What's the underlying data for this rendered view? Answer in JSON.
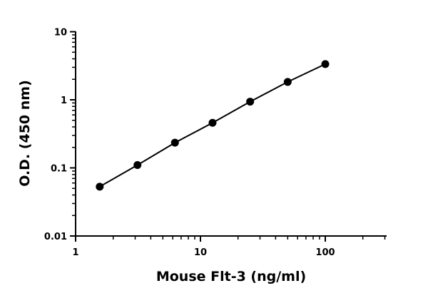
{
  "chart_data": {
    "type": "scatter",
    "title": "",
    "xlabel": "Mouse Flt-3 (ng/ml)",
    "ylabel": "O.D. (450 nm)",
    "x_scale": "log",
    "y_scale": "log",
    "xlim": [
      1,
      300
    ],
    "ylim": [
      0.01,
      10
    ],
    "x_ticks": [
      1,
      10,
      100
    ],
    "x_tick_labels": [
      "1",
      "10",
      "100"
    ],
    "y_ticks": [
      0.01,
      0.1,
      1,
      10
    ],
    "y_tick_labels": [
      "0.01",
      "0.1",
      "1",
      "10"
    ],
    "grid": false,
    "legend": "none",
    "series": [
      {
        "x": [
          1.56,
          3.13,
          6.25,
          12.5,
          25,
          50,
          100
        ],
        "y": [
          0.053,
          0.11,
          0.235,
          0.46,
          0.94,
          1.83,
          3.35
        ],
        "marker": "circle",
        "fit_line": true,
        "color": "#000000"
      }
    ]
  }
}
